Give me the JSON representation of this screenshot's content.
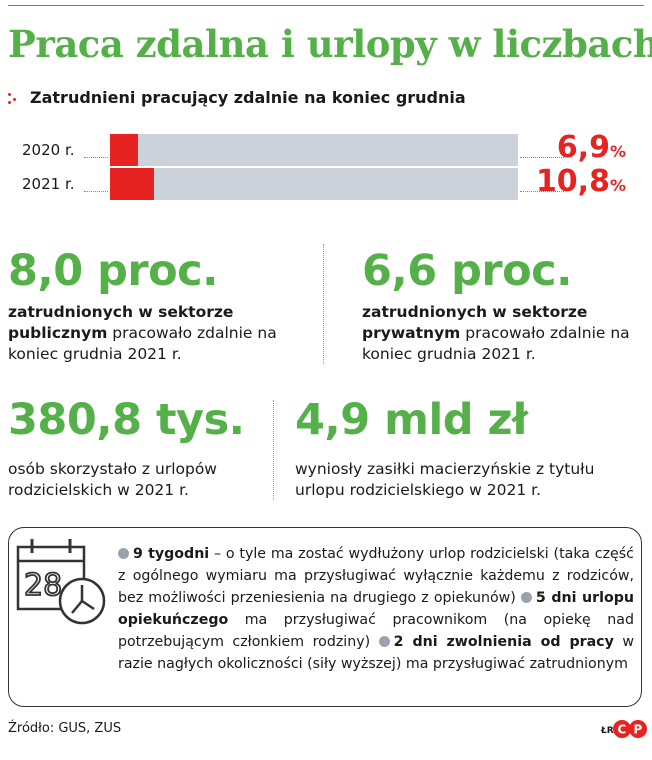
{
  "title": "Praca zdalna i urlopy w liczbach",
  "chart_data": {
    "type": "bar",
    "title": "Zatrudnieni pracujący zdalnie na koniec grudnia",
    "categories": [
      "2020 r.",
      "2021 r."
    ],
    "values": [
      6.9,
      10.8
    ],
    "value_labels": [
      "6,9",
      "10,8"
    ],
    "unit": "%",
    "xlim": [
      0,
      100
    ],
    "colors": {
      "fill": "#e52421",
      "track": "#cdd2da"
    }
  },
  "stats": {
    "public": {
      "value": "8,0 proc.",
      "bold": "zatrudnionych w sektorze publicznym",
      "rest": " pracowało zdalnie na koniec grudnia 2021 r."
    },
    "private": {
      "value": "6,6 proc.",
      "bold": "zatrudnionych w sektorze prywatnym",
      "rest": " pracowało zdalnie na koniec grudnia 2021 r."
    },
    "leave": {
      "value": "380,8 tys.",
      "text": "osób skorzystało z urlopów rodzicielskich w 2021 r."
    },
    "benefits": {
      "value": "4,9 mld zł",
      "text": "wyniosły zasiłki macierzyńskie z tytułu urlopu rodzicielskiego w 2021 r."
    }
  },
  "calendar_day": "28",
  "info": [
    {
      "bold": "9 tygodni",
      "text": " – o tyle ma zostać wydłużony urlop rodzicielski (taka część z ogólnego wymiaru ma przysługiwać wyłącznie każdemu z rodziców, bez możliwości przeniesienia na drugiego z opiekunów) "
    },
    {
      "bold": "5 dni urlopu opiekuńczego",
      "text": " ma przysługiwać pracownikom (na opiekę nad potrzebującym członkiem rodziny) "
    },
    {
      "bold": "2 dni zwolnienia od pracy",
      "text": " w razie nagłych okoliczności (siły wyższej) ma przysługiwać zatrudnionym"
    }
  ],
  "source": "Źródło: GUS, ZUS",
  "author": "ŁR",
  "logo_text": "CP",
  "colors": {
    "green": "#55b04a",
    "red": "#e52421",
    "gray": "#cdd2da"
  }
}
